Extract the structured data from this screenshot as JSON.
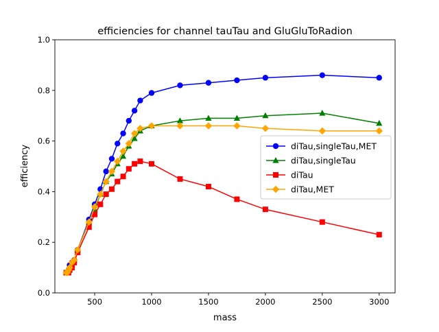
{
  "chart_data": {
    "type": "line",
    "title": "efficiencies for channel tauTau and GluGluToRadion",
    "xlabel": "mass",
    "ylabel": "efficiency",
    "xlim": [
      150,
      3140
    ],
    "ylim": [
      0.0,
      1.0
    ],
    "xticks": [
      500,
      1000,
      1500,
      2000,
      2500,
      3000
    ],
    "yticks": [
      0.0,
      0.2,
      0.4,
      0.6,
      0.8,
      1.0
    ],
    "xtick_labels": [
      "500",
      "1000",
      "1500",
      "2000",
      "2500",
      "3000"
    ],
    "ytick_labels": [
      "0.0",
      "0.2",
      "0.4",
      "0.6",
      "0.8",
      "1.0"
    ],
    "grid": false,
    "legend_position": "center-right",
    "x": [
      250,
      260,
      270,
      280,
      300,
      320,
      350,
      450,
      500,
      550,
      600,
      650,
      700,
      750,
      800,
      850,
      900,
      1000,
      1250,
      1500,
      1750,
      2000,
      2500,
      3000
    ],
    "series": [
      {
        "name": "diTau,singleTau,MET",
        "color": "#0000ff",
        "marker": "circle",
        "values": [
          0.08,
          0.08,
          0.09,
          0.11,
          0.12,
          0.13,
          0.17,
          0.29,
          0.35,
          0.41,
          0.48,
          0.53,
          0.59,
          0.63,
          0.68,
          0.72,
          0.76,
          0.79,
          0.82,
          0.83,
          0.84,
          0.85,
          0.86,
          0.85
        ]
      },
      {
        "name": "diTau,singleTau",
        "color": "#008000",
        "marker": "triangle",
        "values": [
          0.08,
          0.08,
          0.09,
          0.1,
          0.11,
          0.13,
          0.17,
          0.28,
          0.33,
          0.39,
          0.44,
          0.47,
          0.51,
          0.54,
          0.58,
          0.61,
          0.64,
          0.66,
          0.68,
          0.69,
          0.69,
          0.7,
          0.71,
          0.67
        ]
      },
      {
        "name": "diTau",
        "color": "#ff0000",
        "marker": "square",
        "values": [
          0.08,
          0.08,
          0.08,
          0.09,
          0.1,
          0.12,
          0.16,
          0.26,
          0.31,
          0.35,
          0.39,
          0.41,
          0.44,
          0.46,
          0.49,
          0.51,
          0.52,
          0.51,
          0.45,
          0.42,
          0.37,
          0.33,
          0.28,
          0.23
        ]
      },
      {
        "name": "diTau,MET",
        "color": "#ffa500",
        "marker": "diamond",
        "values": [
          0.08,
          0.08,
          0.09,
          0.1,
          0.12,
          0.13,
          0.17,
          0.28,
          0.34,
          0.39,
          0.44,
          0.48,
          0.52,
          0.56,
          0.59,
          0.63,
          0.65,
          0.66,
          0.66,
          0.66,
          0.66,
          0.65,
          0.64,
          0.64
        ]
      }
    ]
  }
}
